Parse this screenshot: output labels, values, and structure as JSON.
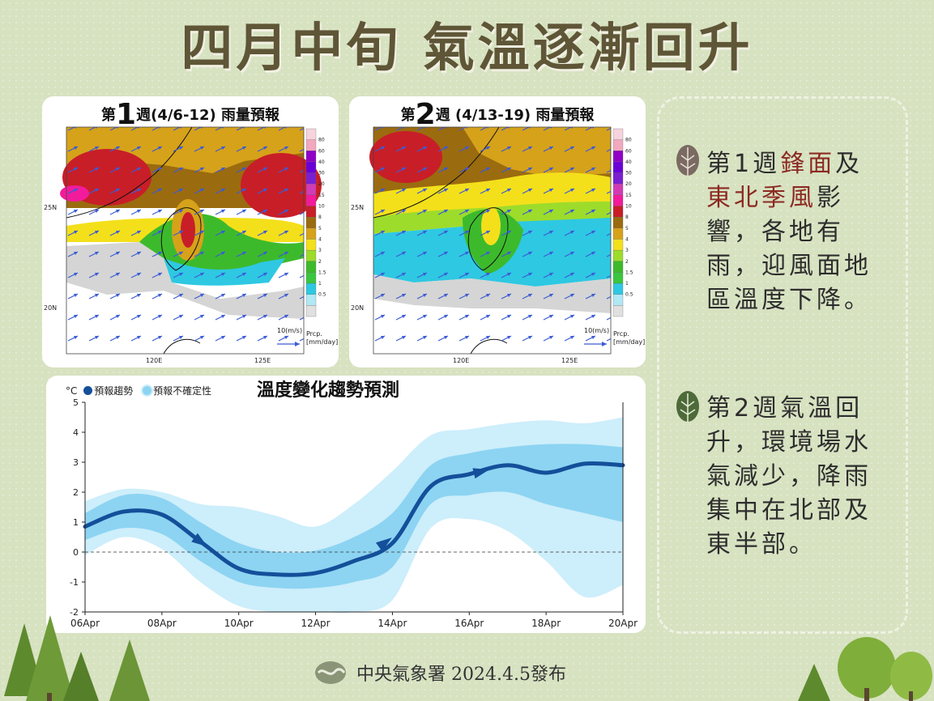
{
  "title": "四月中旬 氣溫逐漸回升",
  "maps": [
    {
      "prefix": "第",
      "week": "1",
      "suffix": "週(4/6-12) 雨量預報"
    },
    {
      "prefix": "第",
      "week": "2",
      "suffix": "週 (4/13-19) 雨量預報"
    }
  ],
  "map_axes": {
    "lat": [
      "25N",
      "20N"
    ],
    "lon": [
      "120E",
      "125E"
    ],
    "wind_ref": "10(m/s)",
    "prcp_unit": [
      "Prcp.",
      "[mm/day]"
    ],
    "scale": [
      "80",
      "60",
      "40",
      "30",
      "20",
      "15",
      "10",
      "8",
      "5",
      "4",
      "3",
      "2",
      "1.5",
      "1",
      "0.5"
    ],
    "scale_colors": [
      "#f7d3dd",
      "#f2a8be",
      "#9000c8",
      "#6a00d8",
      "#7a1fd1",
      "#d23bb6",
      "#f21b9b",
      "#c81e28",
      "#9b6b0f",
      "#d6a21a",
      "#f3e01b",
      "#9ddc2b",
      "#3dba2c",
      "#3bc63f",
      "#2ec8e2",
      "#b0e8f4",
      "#e0e0e0"
    ]
  },
  "chart_data": {
    "type": "line",
    "title": "溫度變化趨勢預測",
    "unit": "°C",
    "legend": {
      "trend": "預報趨勢",
      "uncertainty": "預報不確定性"
    },
    "x_ticks": [
      "06Apr",
      "08Apr",
      "10Apr",
      "12Apr",
      "14Apr",
      "16Apr",
      "18Apr",
      "20Apr"
    ],
    "xlim": [
      0,
      14
    ],
    "ylim": [
      -2,
      5
    ],
    "y_ticks": [
      -2,
      -1,
      0,
      1,
      2,
      3,
      4,
      5
    ],
    "series": [
      {
        "name": "預報趨勢",
        "x": [
          0,
          1,
          2,
          3,
          4,
          5,
          6,
          7,
          8,
          9,
          10,
          11,
          12,
          13,
          14
        ],
        "y": [
          0.85,
          1.35,
          1.25,
          0.35,
          -0.55,
          -0.75,
          -0.7,
          -0.3,
          0.3,
          2.2,
          2.6,
          2.9,
          2.65,
          2.95,
          2.9
        ]
      }
    ],
    "band_inner": {
      "upper": [
        1.3,
        1.9,
        1.8,
        1.0,
        0.3,
        0.0,
        0.05,
        0.5,
        1.3,
        2.9,
        3.3,
        3.5,
        3.6,
        3.6,
        3.5
      ],
      "lower": [
        0.4,
        0.8,
        0.6,
        -0.3,
        -1.0,
        -1.2,
        -1.2,
        -1.0,
        -0.5,
        1.6,
        1.9,
        2.0,
        1.6,
        1.3,
        1.0
      ]
    },
    "band_outer": {
      "upper": [
        1.7,
        2.1,
        2.0,
        1.6,
        1.5,
        1.2,
        0.85,
        1.6,
        2.7,
        3.9,
        4.1,
        4.3,
        4.4,
        4.3,
        4.5
      ],
      "lower": [
        -0.1,
        0.5,
        0.1,
        -1.0,
        -1.8,
        -2.0,
        -2.0,
        -2.0,
        -1.6,
        0.8,
        1.1,
        0.7,
        -0.3,
        -1.5,
        -1.1
      ]
    },
    "grid": false,
    "legend_position": "top-left"
  },
  "notes": [
    {
      "icon": "tree-icon",
      "parts": [
        {
          "t": "第1週",
          "hl": false
        },
        {
          "t": "鋒面",
          "hl": true
        },
        {
          "t": "及",
          "hl": false
        },
        {
          "t": "東北季風",
          "hl": true
        },
        {
          "t": "影響，各地有雨，迎風面地區溫度下降。",
          "hl": false
        }
      ]
    },
    {
      "icon": "tree-icon",
      "parts": [
        {
          "t": "第2週氣溫回升，環境場水氣減少，降雨集中在北部及東半部。",
          "hl": false
        }
      ]
    }
  ],
  "footer": "中央氣象署 2024.4.5發布",
  "colors": {
    "title": "#5f5637",
    "highlight": "#8c2a22",
    "trend": "#144f9a",
    "band_inner": "#8dd4f2",
    "band_outer": "#cdeefb"
  }
}
